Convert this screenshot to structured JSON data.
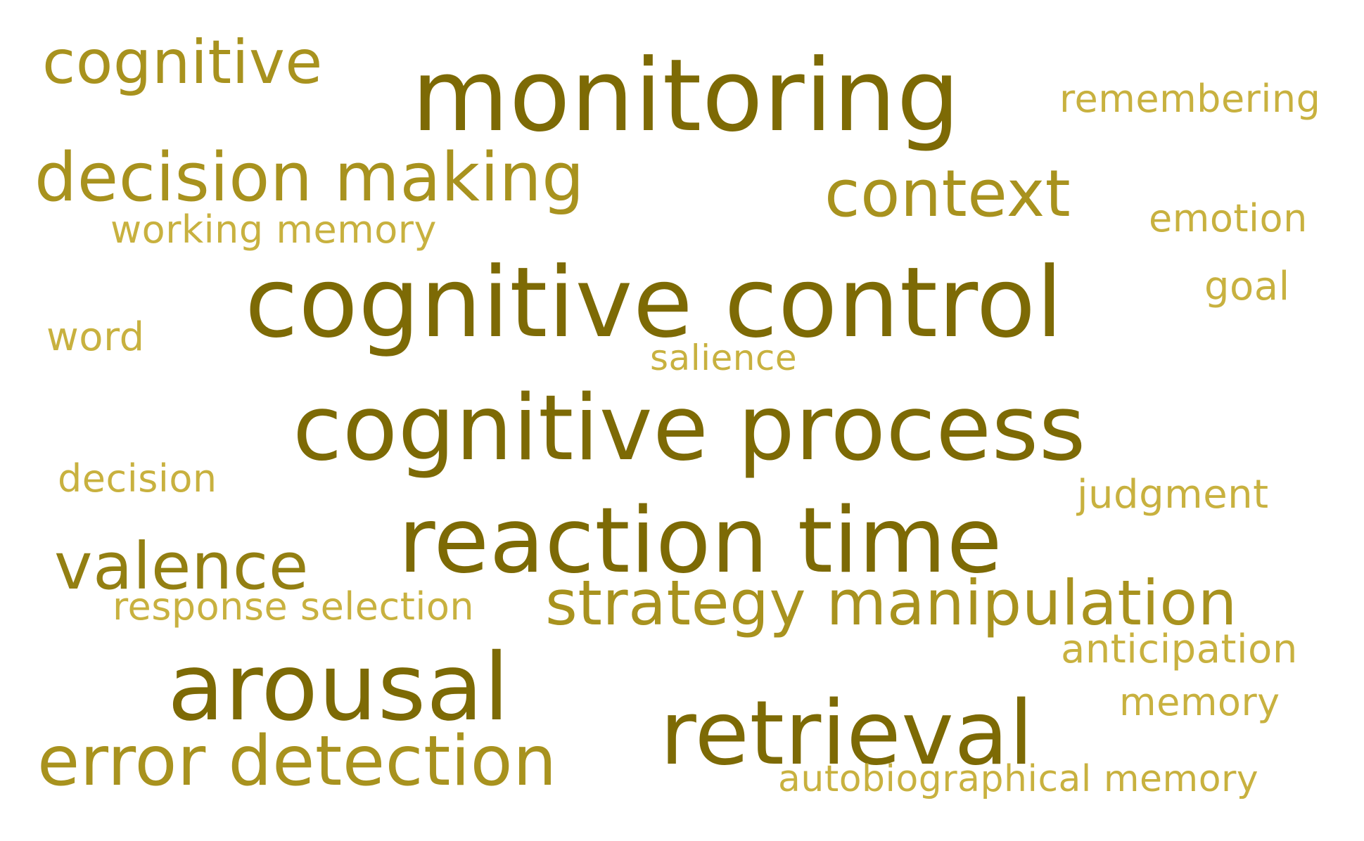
{
  "word_cloud": {
    "words": [
      {
        "id": "cognitive",
        "text": "cognitive",
        "color": "#a8921e"
      },
      {
        "id": "monitoring",
        "text": "monitoring",
        "color": "#7d6a05"
      },
      {
        "id": "remembering",
        "text": "remembering",
        "color": "#c8b13f"
      },
      {
        "id": "decision_making",
        "text": "decision making",
        "color": "#a8921e"
      },
      {
        "id": "context",
        "text": "context",
        "color": "#a8921e"
      },
      {
        "id": "emotion",
        "text": "emotion",
        "color": "#c8b13f"
      },
      {
        "id": "working_memory",
        "text": "working memory",
        "color": "#c8b13f"
      },
      {
        "id": "cognitive_control",
        "text": "cognitive control",
        "color": "#7d6a05"
      },
      {
        "id": "goal",
        "text": "goal",
        "color": "#c8b13f"
      },
      {
        "id": "word",
        "text": "word",
        "color": "#c8b13f"
      },
      {
        "id": "salience",
        "text": "salience",
        "color": "#c8b13f"
      },
      {
        "id": "cognitive_process",
        "text": "cognitive process",
        "color": "#7d6a05"
      },
      {
        "id": "decision",
        "text": "decision",
        "color": "#c8b13f"
      },
      {
        "id": "judgment",
        "text": "judgment",
        "color": "#c8b13f"
      },
      {
        "id": "reaction_time",
        "text": "reaction time",
        "color": "#7d6a05"
      },
      {
        "id": "valence",
        "text": "valence",
        "color": "#937f12"
      },
      {
        "id": "strategy_manipulation",
        "text": "strategy manipulation",
        "color": "#a8921e"
      },
      {
        "id": "response_selection",
        "text": "response selection",
        "color": "#c8b13f"
      },
      {
        "id": "anticipation",
        "text": "anticipation",
        "color": "#c8b13f"
      },
      {
        "id": "arousal",
        "text": "arousal",
        "color": "#7d6a05"
      },
      {
        "id": "memory",
        "text": "memory",
        "color": "#c8b13f"
      },
      {
        "id": "retrieval",
        "text": "retrieval",
        "color": "#7d6a05"
      },
      {
        "id": "error_detection",
        "text": "error detection",
        "color": "#a8921e"
      },
      {
        "id": "autobiographical_memory",
        "text": "autobiographical memory",
        "color": "#c8b13f"
      }
    ]
  }
}
